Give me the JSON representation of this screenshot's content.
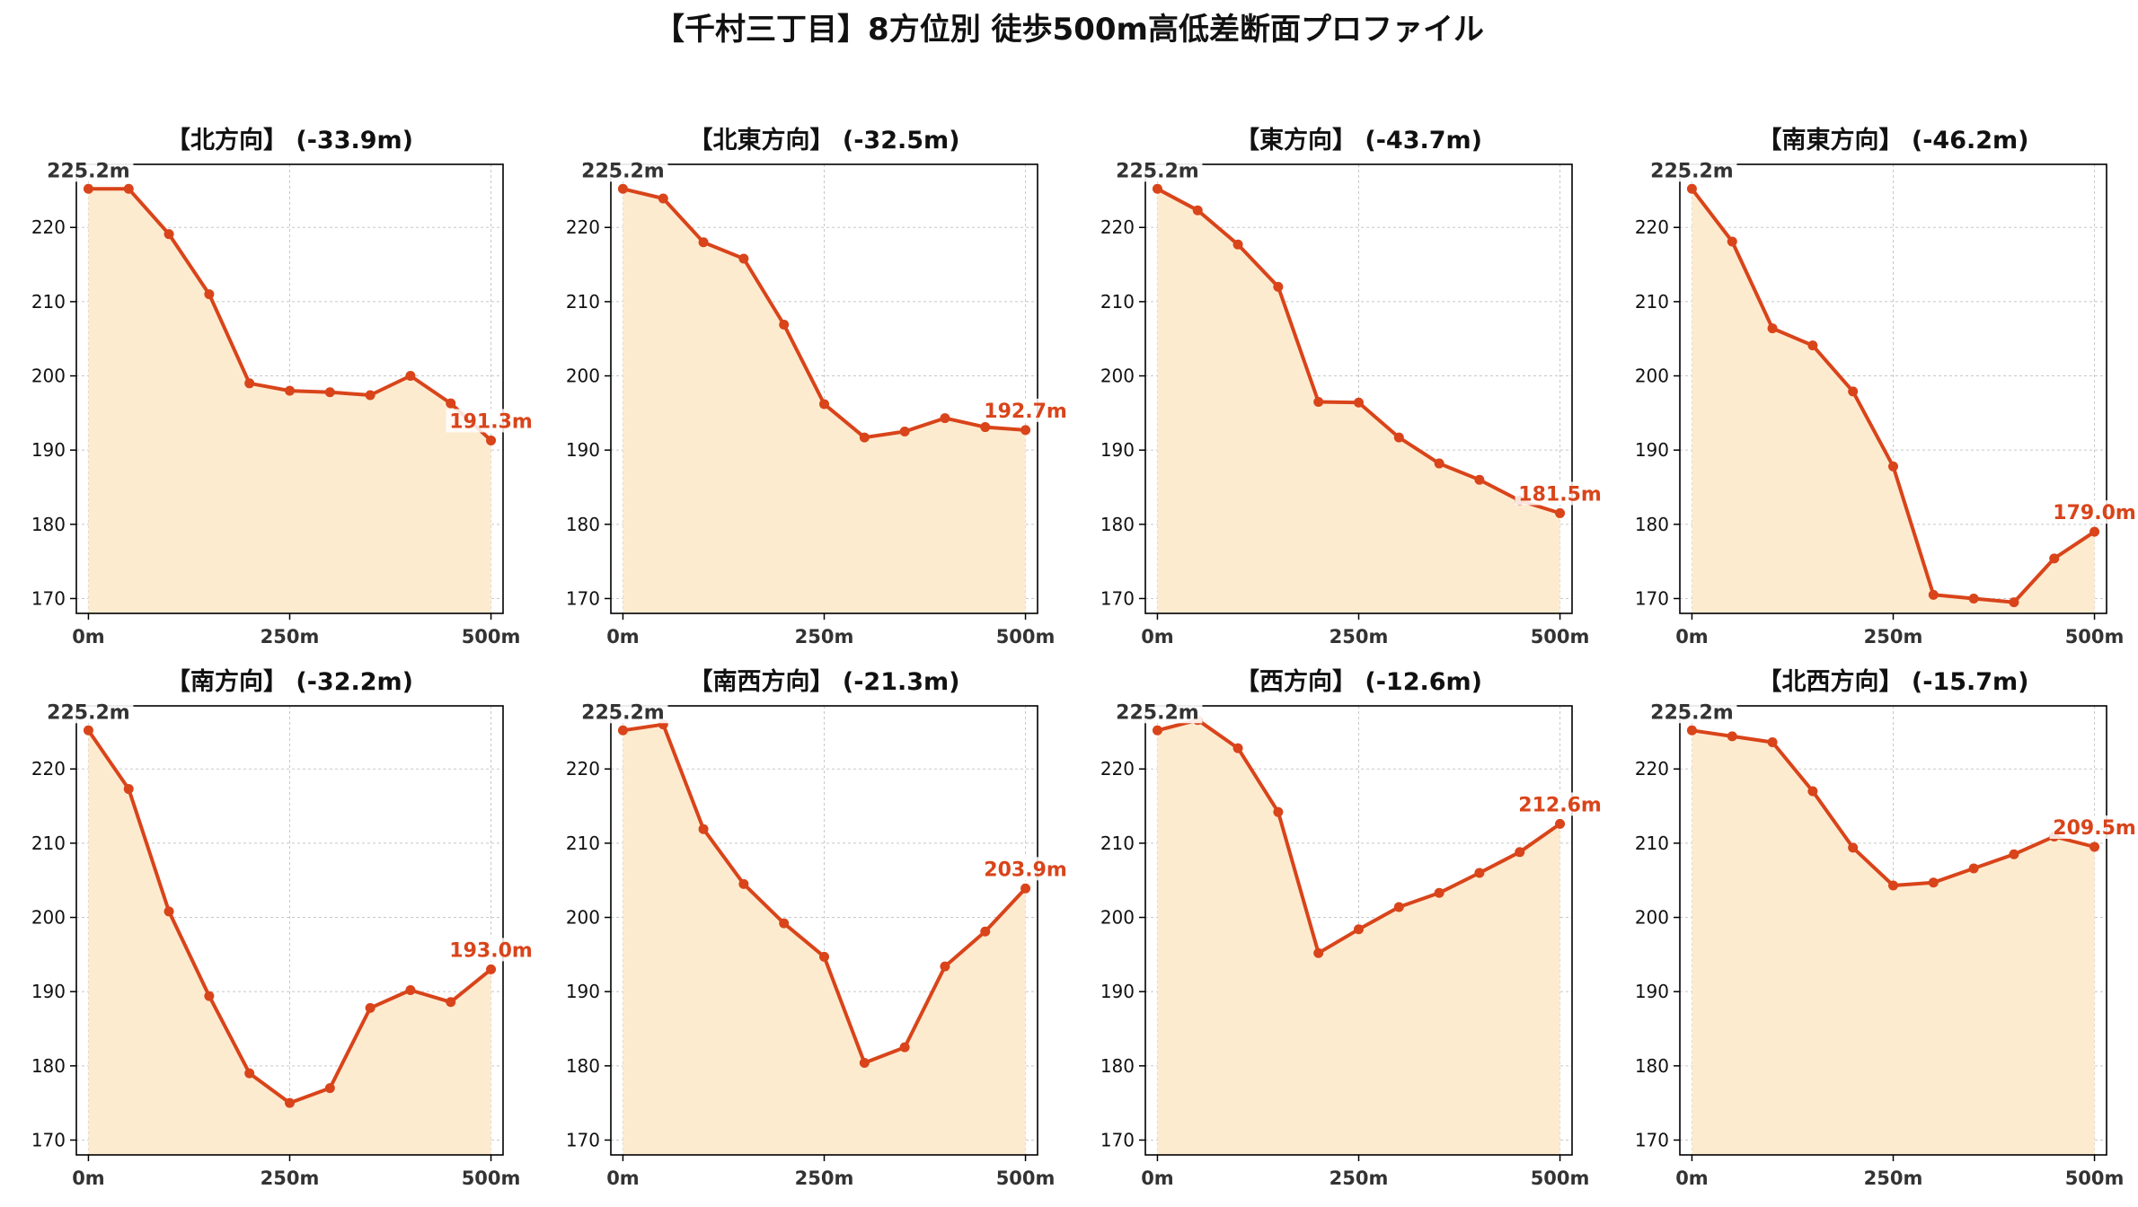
{
  "title": "【千村三丁目】8方位別 徒歩500m高低差断面プロファイル",
  "colors": {
    "line": "#d9441a",
    "fill": "#fdebd0",
    "axis": "#000000",
    "grid": "#c8c8c8",
    "start_label": "#333333",
    "end_label": "#d9441a"
  },
  "chart_data": [
    {
      "type": "line",
      "title": "【北方向】 (-33.9m)",
      "x": [
        0,
        50,
        100,
        150,
        200,
        250,
        300,
        350,
        400,
        450,
        500
      ],
      "y": [
        225.2,
        225.2,
        219.1,
        211.0,
        199.0,
        198.0,
        197.8,
        197.4,
        200.0,
        196.3,
        191.3
      ],
      "start_label": "225.2m",
      "end_label": "191.3m",
      "ylim": [
        168,
        228.5
      ],
      "xlim": [
        -15,
        515
      ],
      "yticks": [
        170,
        180,
        190,
        200,
        210,
        220
      ],
      "xticks": [
        0,
        250,
        500
      ],
      "xtick_labels": [
        "0m",
        "250m",
        "500m"
      ],
      "grid": true
    },
    {
      "type": "line",
      "title": "【北東方向】 (-32.5m)",
      "x": [
        0,
        50,
        100,
        150,
        200,
        250,
        300,
        350,
        400,
        450,
        500
      ],
      "y": [
        225.2,
        223.9,
        218.0,
        215.8,
        206.9,
        196.2,
        191.7,
        192.5,
        194.3,
        193.1,
        192.7
      ],
      "start_label": "225.2m",
      "end_label": "192.7m",
      "ylim": [
        168,
        228.5
      ],
      "xlim": [
        -15,
        515
      ],
      "yticks": [
        170,
        180,
        190,
        200,
        210,
        220
      ],
      "xticks": [
        0,
        250,
        500
      ],
      "xtick_labels": [
        "0m",
        "250m",
        "500m"
      ],
      "grid": true
    },
    {
      "type": "line",
      "title": "【東方向】 (-43.7m)",
      "x": [
        0,
        50,
        100,
        150,
        200,
        250,
        300,
        350,
        400,
        450,
        500
      ],
      "y": [
        225.2,
        222.3,
        217.7,
        212.0,
        196.5,
        196.4,
        191.7,
        188.2,
        186.0,
        183.2,
        181.5
      ],
      "start_label": "225.2m",
      "end_label": "181.5m",
      "ylim": [
        168,
        228.5
      ],
      "xlim": [
        -15,
        515
      ],
      "yticks": [
        170,
        180,
        190,
        200,
        210,
        220
      ],
      "xticks": [
        0,
        250,
        500
      ],
      "xtick_labels": [
        "0m",
        "250m",
        "500m"
      ],
      "grid": true
    },
    {
      "type": "line",
      "title": "【南東方向】 (-46.2m)",
      "x": [
        0,
        50,
        100,
        150,
        200,
        250,
        300,
        350,
        400,
        450,
        500
      ],
      "y": [
        225.2,
        218.1,
        206.4,
        204.1,
        197.9,
        187.8,
        170.5,
        170.0,
        169.5,
        175.4,
        179.0
      ],
      "start_label": "225.2m",
      "end_label": "179.0m",
      "ylim": [
        168,
        228.5
      ],
      "xlim": [
        -15,
        515
      ],
      "yticks": [
        170,
        180,
        190,
        200,
        210,
        220
      ],
      "xticks": [
        0,
        250,
        500
      ],
      "xtick_labels": [
        "0m",
        "250m",
        "500m"
      ],
      "grid": true
    },
    {
      "type": "line",
      "title": "【南方向】 (-32.2m)",
      "x": [
        0,
        50,
        100,
        150,
        200,
        250,
        300,
        350,
        400,
        450,
        500
      ],
      "y": [
        225.2,
        217.3,
        200.8,
        189.4,
        179.0,
        175.0,
        177.0,
        187.8,
        190.2,
        188.6,
        193.0
      ],
      "start_label": "225.2m",
      "end_label": "193.0m",
      "ylim": [
        168,
        228.5
      ],
      "xlim": [
        -15,
        515
      ],
      "yticks": [
        170,
        180,
        190,
        200,
        210,
        220
      ],
      "xticks": [
        0,
        250,
        500
      ],
      "xtick_labels": [
        "0m",
        "250m",
        "500m"
      ],
      "grid": true
    },
    {
      "type": "line",
      "title": "【南西方向】 (-21.3m)",
      "x": [
        0,
        50,
        100,
        150,
        200,
        250,
        300,
        350,
        400,
        450,
        500
      ],
      "y": [
        225.2,
        226.0,
        211.9,
        204.5,
        199.2,
        194.7,
        180.4,
        182.5,
        193.4,
        198.1,
        203.9
      ],
      "start_label": "225.2m",
      "end_label": "203.9m",
      "ylim": [
        168,
        228.5
      ],
      "xlim": [
        -15,
        515
      ],
      "yticks": [
        170,
        180,
        190,
        200,
        210,
        220
      ],
      "xticks": [
        0,
        250,
        500
      ],
      "xtick_labels": [
        "0m",
        "250m",
        "500m"
      ],
      "grid": true
    },
    {
      "type": "line",
      "title": "【西方向】 (-12.6m)",
      "x": [
        0,
        50,
        100,
        150,
        200,
        250,
        300,
        350,
        400,
        450,
        500
      ],
      "y": [
        225.2,
        226.6,
        222.8,
        214.2,
        195.2,
        198.4,
        201.4,
        203.3,
        206.0,
        208.8,
        212.6
      ],
      "start_label": "225.2m",
      "end_label": "212.6m",
      "ylim": [
        168,
        228.5
      ],
      "xlim": [
        -15,
        515
      ],
      "yticks": [
        170,
        180,
        190,
        200,
        210,
        220
      ],
      "xticks": [
        0,
        250,
        500
      ],
      "xtick_labels": [
        "0m",
        "250m",
        "500m"
      ],
      "grid": true
    },
    {
      "type": "line",
      "title": "【北西方向】 (-15.7m)",
      "x": [
        0,
        50,
        100,
        150,
        200,
        250,
        300,
        350,
        400,
        450,
        500
      ],
      "y": [
        225.2,
        224.4,
        223.6,
        217.0,
        209.4,
        204.3,
        204.7,
        206.6,
        208.5,
        210.9,
        209.5
      ],
      "start_label": "225.2m",
      "end_label": "209.5m",
      "ylim": [
        168,
        228.5
      ],
      "xlim": [
        -15,
        515
      ],
      "yticks": [
        170,
        180,
        190,
        200,
        210,
        220
      ],
      "xticks": [
        0,
        250,
        500
      ],
      "xtick_labels": [
        "0m",
        "250m",
        "500m"
      ],
      "grid": true
    }
  ]
}
